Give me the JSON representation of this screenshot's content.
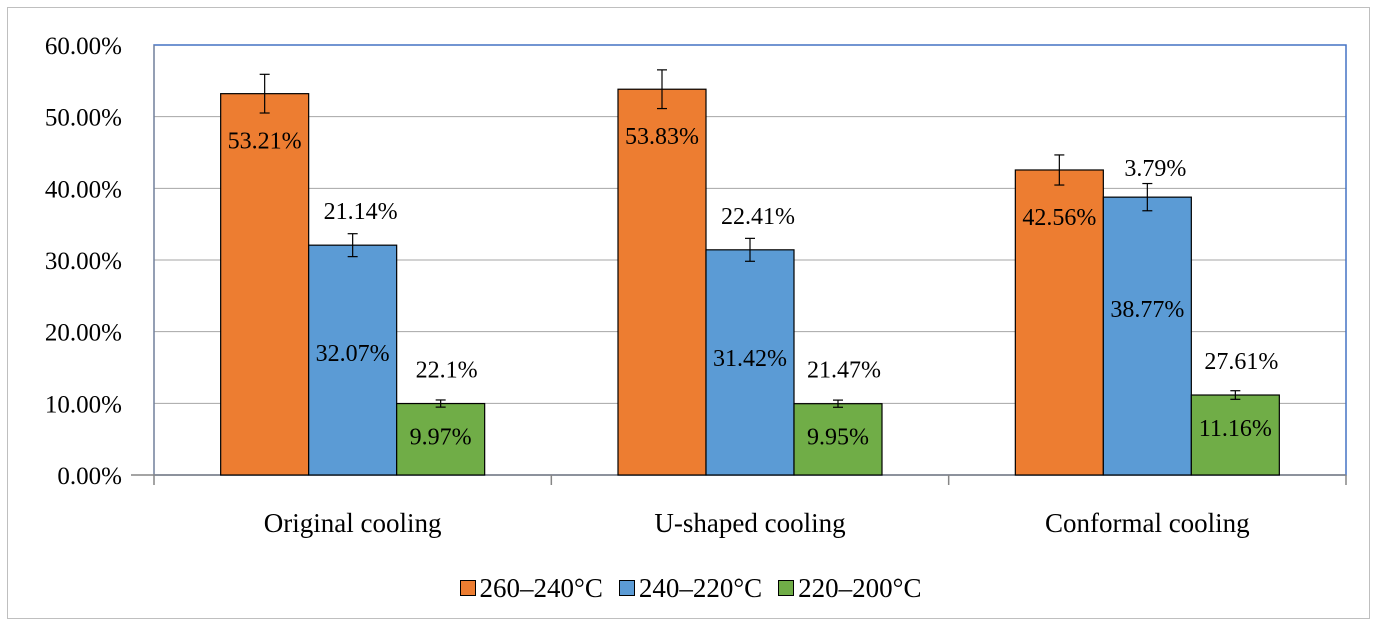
{
  "chart_data": {
    "type": "bar",
    "categories": [
      "Original cooling",
      "U-shaped  cooling",
      "Conformal cooling"
    ],
    "series": [
      {
        "name": "260–240°C",
        "color": "#ed7d31",
        "values": [
          0.5321,
          0.5383,
          0.4256
        ],
        "errors": [
          0.027,
          0.027,
          0.021
        ],
        "labels": [
          "53.21%",
          "53.83%",
          "42.56%"
        ]
      },
      {
        "name": "240–220°C",
        "color": "#5b9bd5",
        "values": [
          0.3207,
          0.3142,
          0.3877
        ],
        "errors": [
          0.016,
          0.016,
          0.019
        ],
        "labels": [
          "32.07%",
          "31.42%",
          "38.77%"
        ]
      },
      {
        "name": "220–200°C",
        "color": "#70ad47",
        "values": [
          0.0997,
          0.0995,
          0.1116
        ],
        "errors": [
          0.005,
          0.005,
          0.006
        ],
        "labels": [
          "9.97%",
          "9.95%",
          "11.16%"
        ]
      }
    ],
    "annotations": [
      {
        "series": 1,
        "category": 0,
        "text": "21.14%"
      },
      {
        "series": 1,
        "category": 1,
        "text": "22.41%"
      },
      {
        "series": 1,
        "category": 2,
        "text": "3.79%"
      },
      {
        "series": 2,
        "category": 0,
        "text": "22.1%"
      },
      {
        "series": 2,
        "category": 1,
        "text": "21.47%"
      },
      {
        "series": 2,
        "category": 2,
        "text": "27.61%"
      }
    ],
    "ylim": [
      0,
      0.6
    ],
    "yticks": [
      "0.00%",
      "10.00%",
      "20.00%",
      "30.00%",
      "40.00%",
      "50.00%",
      "60.00%"
    ],
    "grid": true,
    "legend_position": "bottom",
    "plot_border_color": "#4472c4",
    "xlabel": "",
    "ylabel": "",
    "title": ""
  }
}
